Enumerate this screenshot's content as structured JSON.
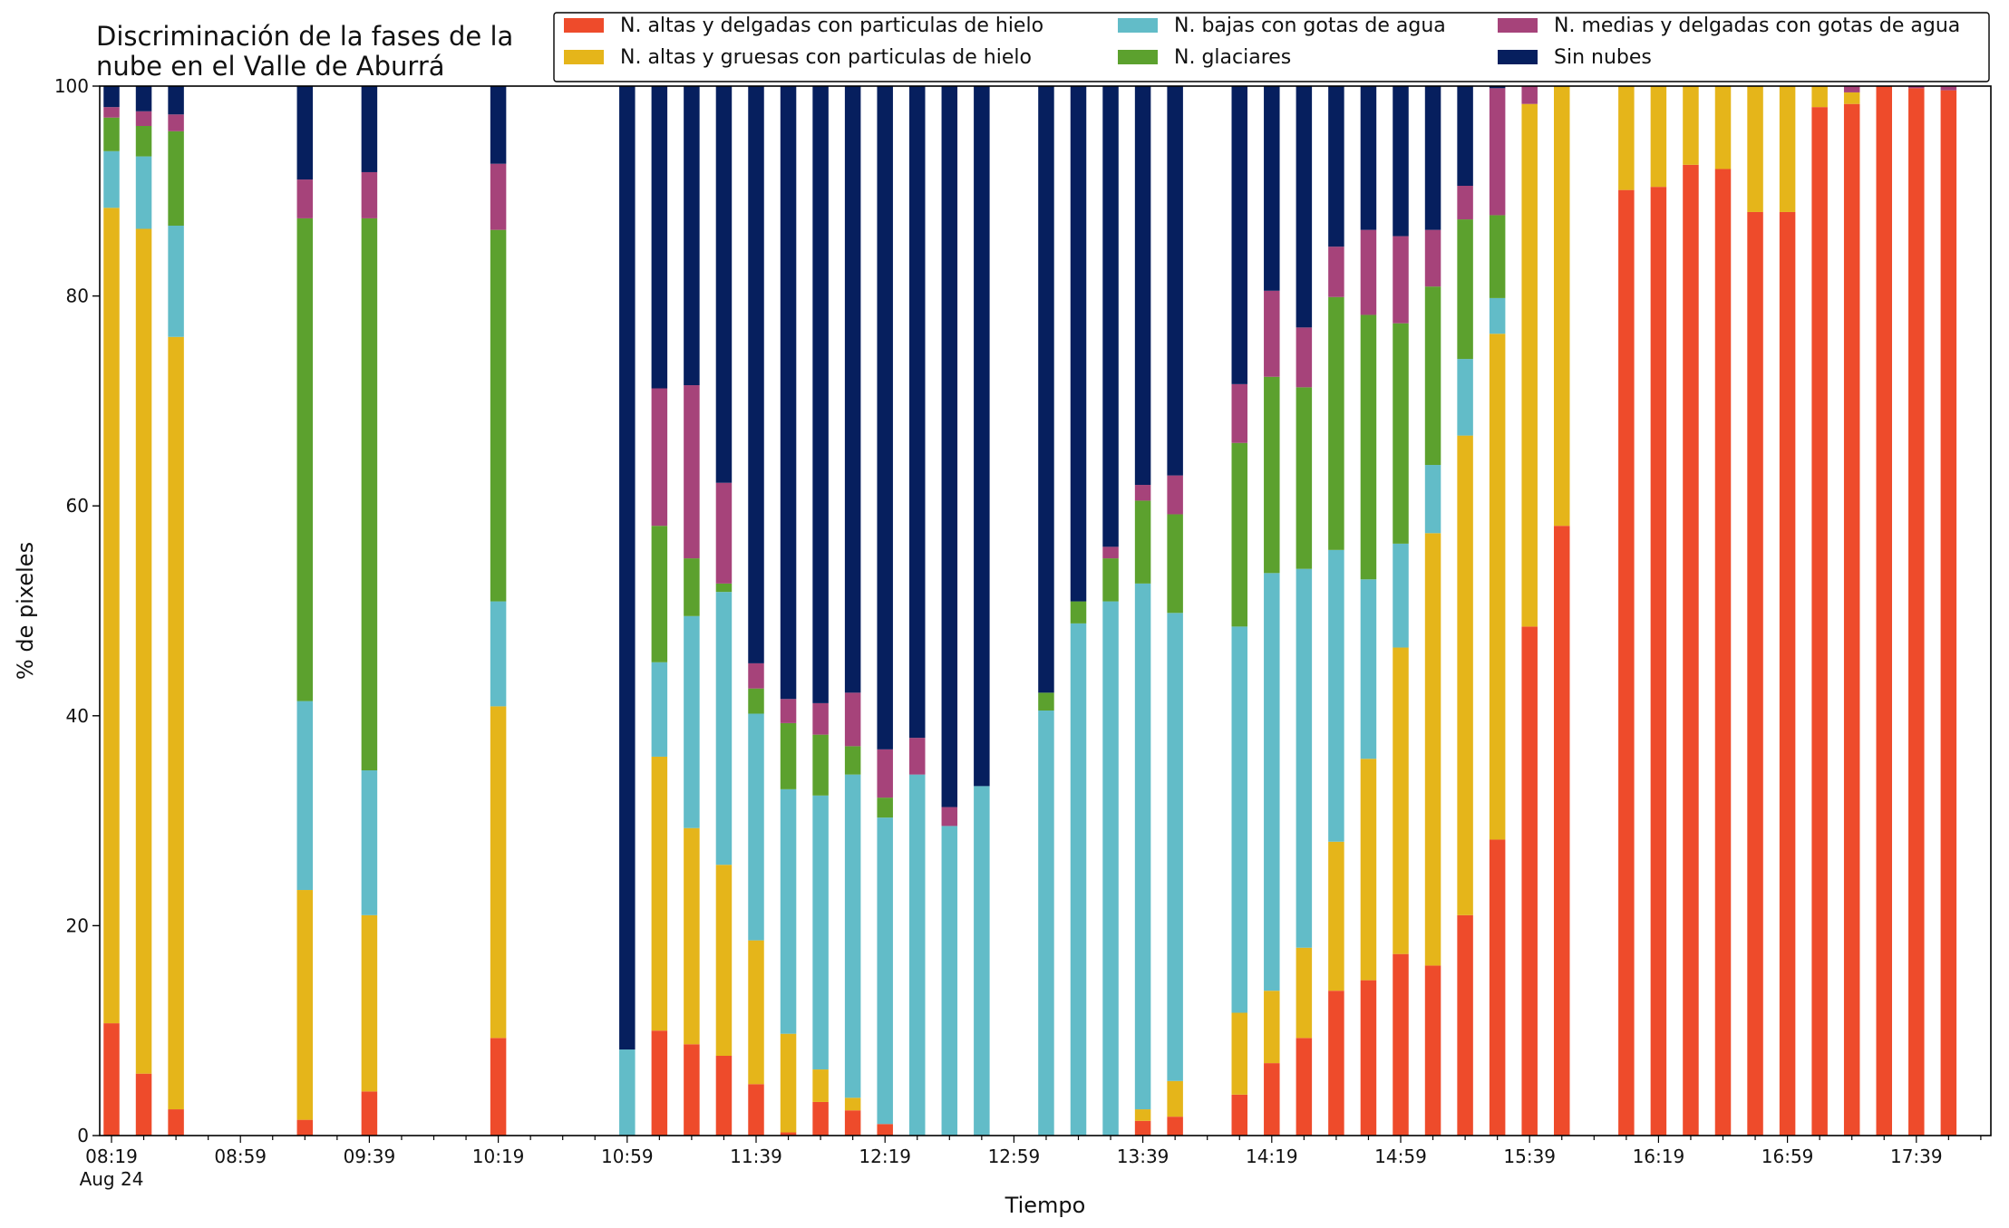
{
  "chart_data": {
    "type": "bar",
    "stacked": true,
    "title_lines": [
      "Discriminación de la fases de la",
      "nube en el Valle de Aburrá"
    ],
    "xlabel": "Tiempo",
    "ylabel": "% de pixeles",
    "ylim": [
      0,
      100
    ],
    "yticks": [
      "0",
      "20",
      "40",
      "60",
      "80",
      "100"
    ],
    "xtick_labels": [
      "08:19",
      "08:59",
      "09:39",
      "10:19",
      "10:59",
      "11:39",
      "12:19",
      "12:59",
      "13:39",
      "14:19",
      "14:59",
      "15:39",
      "16:19",
      "16:59",
      "17:39"
    ],
    "xtick_sublabel": "Aug 24",
    "slot_interval_minutes": 10,
    "first_label_slot": 0,
    "label_every_slots": 4,
    "total_ticks": 60,
    "grid": false,
    "legend_position": "top",
    "series": [
      {
        "name": "N. altas y delgadas con particulas de hielo",
        "color": "#ee4b2b"
      },
      {
        "name": "N. altas y gruesas con particulas de hielo",
        "color": "#e5b51a"
      },
      {
        "name": "N. bajas con gotas de agua",
        "color": "#62bcc8"
      },
      {
        "name": "N. glaciares",
        "color": "#5ca12e"
      },
      {
        "name": "N. medias y delgadas con gotas de agua",
        "color": "#a6437a"
      },
      {
        "name": "Sin nubes",
        "color": "#061f5e"
      }
    ],
    "bars": [
      {
        "time": "08:19",
        "slot": 0,
        "values": [
          10.7,
          77.7,
          5.4,
          3.2,
          1.0,
          2.0
        ]
      },
      {
        "time": "08:29",
        "slot": 1,
        "values": [
          5.9,
          80.5,
          6.9,
          2.9,
          1.4,
          2.4
        ]
      },
      {
        "time": "08:39",
        "slot": 2,
        "values": [
          2.5,
          73.6,
          10.6,
          9.0,
          1.6,
          2.7
        ]
      },
      {
        "time": "09:19",
        "slot": 6,
        "values": [
          1.5,
          21.9,
          18.0,
          46.0,
          3.7,
          8.9
        ]
      },
      {
        "time": "09:39",
        "slot": 8,
        "values": [
          4.2,
          16.8,
          13.8,
          52.6,
          4.4,
          8.2
        ]
      },
      {
        "time": "10:19",
        "slot": 12,
        "values": [
          9.3,
          31.6,
          10.0,
          35.4,
          6.3,
          7.4
        ]
      },
      {
        "time": "10:59",
        "slot": 16,
        "values": [
          0.0,
          0.0,
          8.2,
          0.0,
          0.0,
          91.8
        ]
      },
      {
        "time": "11:09",
        "slot": 17,
        "values": [
          10.0,
          26.1,
          9.0,
          13.0,
          13.1,
          28.8
        ]
      },
      {
        "time": "11:19",
        "slot": 18,
        "values": [
          8.7,
          20.6,
          20.2,
          5.5,
          16.5,
          28.5
        ]
      },
      {
        "time": "11:29",
        "slot": 19,
        "values": [
          7.6,
          18.2,
          26.0,
          0.8,
          9.6,
          37.8
        ]
      },
      {
        "time": "11:39",
        "slot": 20,
        "values": [
          4.9,
          13.7,
          21.6,
          2.4,
          2.4,
          55.0
        ]
      },
      {
        "time": "11:49",
        "slot": 21,
        "values": [
          0.3,
          9.4,
          23.3,
          6.3,
          2.3,
          58.4
        ]
      },
      {
        "time": "11:59",
        "slot": 22,
        "values": [
          3.2,
          3.1,
          26.1,
          5.8,
          3.0,
          58.8
        ]
      },
      {
        "time": "12:09",
        "slot": 23,
        "values": [
          2.4,
          1.2,
          30.8,
          2.7,
          5.1,
          57.8
        ]
      },
      {
        "time": "12:19",
        "slot": 24,
        "values": [
          1.1,
          0.0,
          29.2,
          1.9,
          4.6,
          63.2
        ]
      },
      {
        "time": "12:29",
        "slot": 25,
        "values": [
          0.0,
          0.0,
          34.4,
          0.0,
          3.5,
          62.1
        ]
      },
      {
        "time": "12:39",
        "slot": 26,
        "values": [
          0.0,
          0.0,
          29.5,
          0.0,
          1.8,
          68.7
        ]
      },
      {
        "time": "12:49",
        "slot": 27,
        "values": [
          0.0,
          0.0,
          33.3,
          0.0,
          0.0,
          66.7
        ]
      },
      {
        "time": "13:09",
        "slot": 29,
        "values": [
          0.0,
          0.0,
          40.5,
          1.7,
          0.0,
          57.8
        ]
      },
      {
        "time": "13:19",
        "slot": 30,
        "values": [
          0.0,
          0.0,
          48.8,
          2.1,
          0.0,
          49.1
        ]
      },
      {
        "time": "13:29",
        "slot": 31,
        "values": [
          0.0,
          0.0,
          50.9,
          4.1,
          1.1,
          43.9
        ]
      },
      {
        "time": "13:39",
        "slot": 32,
        "values": [
          1.4,
          1.1,
          50.1,
          7.9,
          1.5,
          38.0
        ]
      },
      {
        "time": "13:49",
        "slot": 33,
        "values": [
          1.8,
          3.4,
          44.6,
          9.4,
          3.7,
          37.1
        ]
      },
      {
        "time": "14:09",
        "slot": 35,
        "values": [
          3.9,
          7.8,
          36.8,
          17.5,
          5.6,
          28.4
        ]
      },
      {
        "time": "14:19",
        "slot": 36,
        "values": [
          6.9,
          6.9,
          39.8,
          18.7,
          8.2,
          19.5
        ]
      },
      {
        "time": "14:29",
        "slot": 37,
        "values": [
          9.3,
          8.6,
          36.1,
          17.3,
          5.7,
          23.0
        ]
      },
      {
        "time": "14:39",
        "slot": 38,
        "values": [
          13.8,
          14.2,
          27.8,
          24.1,
          4.8,
          15.3
        ]
      },
      {
        "time": "14:49",
        "slot": 39,
        "values": [
          14.8,
          21.1,
          17.1,
          25.2,
          8.1,
          13.7
        ]
      },
      {
        "time": "14:59",
        "slot": 40,
        "values": [
          17.3,
          29.2,
          9.9,
          21.0,
          8.3,
          14.3
        ]
      },
      {
        "time": "15:09",
        "slot": 41,
        "values": [
          16.2,
          41.2,
          6.5,
          17.0,
          5.4,
          13.7
        ]
      },
      {
        "time": "15:19",
        "slot": 42,
        "values": [
          21.0,
          45.7,
          7.3,
          13.3,
          3.2,
          9.5
        ]
      },
      {
        "time": "15:29",
        "slot": 43,
        "values": [
          28.2,
          48.2,
          3.4,
          7.9,
          12.1,
          0.2
        ]
      },
      {
        "time": "15:39",
        "slot": 44,
        "values": [
          48.5,
          49.8,
          0.0,
          0.0,
          1.7,
          0.0
        ]
      },
      {
        "time": "15:49",
        "slot": 45,
        "values": [
          58.1,
          41.9,
          0.0,
          0.0,
          0.0,
          0.0
        ]
      },
      {
        "time": "16:09",
        "slot": 47,
        "values": [
          90.1,
          9.9,
          0.0,
          0.0,
          0.0,
          0.0
        ]
      },
      {
        "time": "16:19",
        "slot": 48,
        "values": [
          90.4,
          9.6,
          0.0,
          0.0,
          0.0,
          0.0
        ]
      },
      {
        "time": "16:29",
        "slot": 49,
        "values": [
          92.5,
          7.5,
          0.0,
          0.0,
          0.0,
          0.0
        ]
      },
      {
        "time": "16:39",
        "slot": 50,
        "values": [
          92.1,
          7.9,
          0.0,
          0.0,
          0.0,
          0.0
        ]
      },
      {
        "time": "16:49",
        "slot": 51,
        "values": [
          88.0,
          12.0,
          0.0,
          0.0,
          0.0,
          0.0
        ]
      },
      {
        "time": "16:59",
        "slot": 52,
        "values": [
          88.0,
          12.0,
          0.0,
          0.0,
          0.0,
          0.0
        ]
      },
      {
        "time": "17:09",
        "slot": 53,
        "values": [
          98.0,
          2.0,
          0.0,
          0.0,
          0.0,
          0.0
        ]
      },
      {
        "time": "17:19",
        "slot": 54,
        "values": [
          98.3,
          1.1,
          0.0,
          0.0,
          0.6,
          0.0
        ]
      },
      {
        "time": "17:29",
        "slot": 55,
        "values": [
          100.0,
          0.0,
          0.0,
          0.0,
          0.0,
          0.0
        ]
      },
      {
        "time": "17:39",
        "slot": 56,
        "values": [
          99.8,
          0.0,
          0.0,
          0.0,
          0.2,
          0.0
        ]
      },
      {
        "time": "17:49",
        "slot": 57,
        "values": [
          99.6,
          0.0,
          0.0,
          0.0,
          0.4,
          0.0
        ]
      }
    ]
  }
}
